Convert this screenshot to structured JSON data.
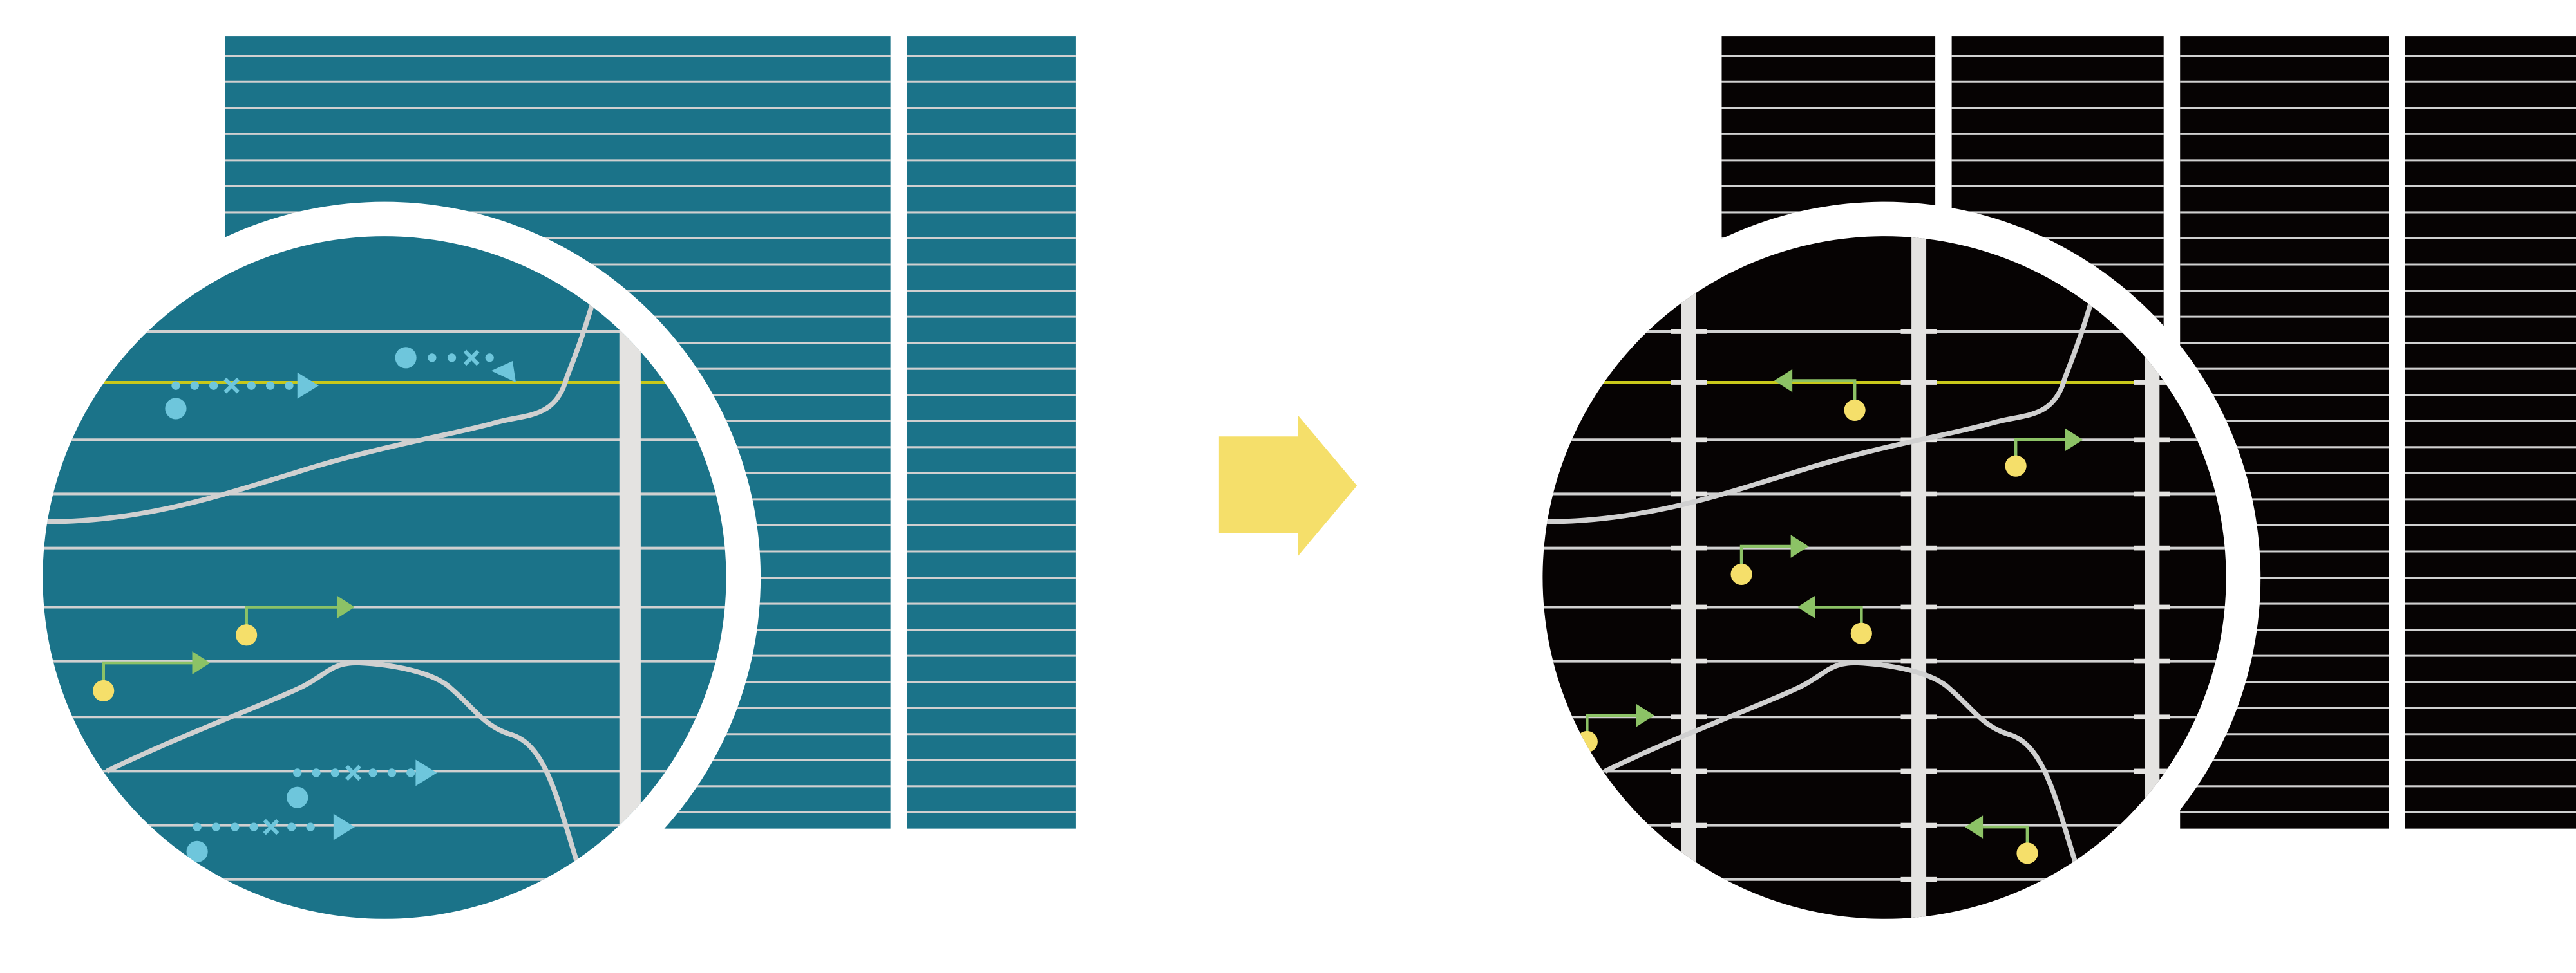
{
  "colors": {
    "background": "#ffffff",
    "teal_panel": "#1b7389",
    "black_panel": "#060303",
    "grid_line": "#d0d0d0",
    "vertical_bar": "#e4e3e1",
    "highlight_line": "#c8c81a",
    "blue_marker": "#6ec6dc",
    "green_arrow": "#8cc266",
    "yellow_dot": "#f5df6a",
    "transition_arrow": "#f5df6a"
  },
  "diagram": {
    "left_panel": {
      "label_icon": "teal-grid-panel",
      "magnifier_icon": "magnifier-circle"
    },
    "transition": {
      "icon": "right-arrow-icon"
    },
    "right_panel": {
      "label_icon": "black-grid-panel",
      "magnifier_icon": "magnifier-circle"
    }
  }
}
